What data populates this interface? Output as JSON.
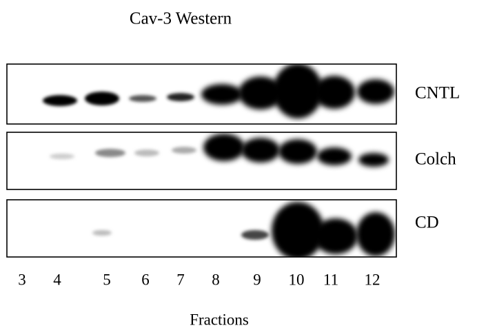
{
  "title": "Cav-3 Western",
  "panels": [
    {
      "label": "CNTL"
    },
    {
      "label": "Colch"
    },
    {
      "label": "CD"
    }
  ],
  "fractions": [
    "3",
    "4",
    "5",
    "6",
    "7",
    "8",
    "9",
    "10",
    "11",
    "12"
  ],
  "x_label": "Fractions"
}
